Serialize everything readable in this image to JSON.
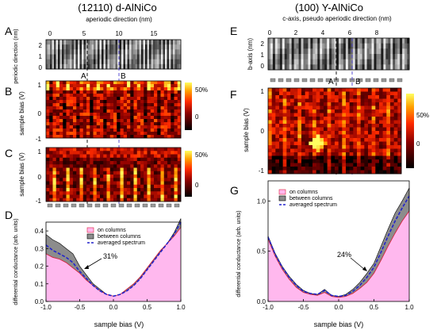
{
  "figure": {
    "left_title": "(12110) d-AlNiCo",
    "right_title": "(100) Y-AlNiCo"
  },
  "left": {
    "A": {
      "label": "A",
      "top_axis_label": "aperiodic direction (nm)",
      "top_ticks": [
        "0",
        "5",
        "10",
        "15"
      ],
      "y_label": "periodic direction (nm)",
      "y_ticks": [
        "2",
        "1",
        "0"
      ],
      "markers": [
        "A",
        "B"
      ]
    },
    "B": {
      "label": "B",
      "y_label": "sample bias (V)",
      "y_ticks": [
        "1",
        "0",
        "-1"
      ],
      "colorbar_ticks": [
        "50%",
        "0"
      ]
    },
    "C": {
      "label": "C",
      "y_label": "sample bias (V)",
      "y_ticks": [
        "1",
        "0",
        "-1"
      ],
      "colorbar_ticks": [
        "50%",
        "0"
      ]
    },
    "D": {
      "label": "D",
      "y_label": "differential conductance (arb. units)",
      "x_label": "sample bias (V)",
      "annotation": "31%"
    }
  },
  "right": {
    "E": {
      "label": "E",
      "top_axis_label": "c-axis, pseudo aperiodic direction (nm)",
      "top_ticks": [
        "0",
        "2",
        "4",
        "6",
        "8"
      ],
      "y_label": "b-axis (nm)",
      "y_ticks": [
        "2",
        "1",
        "0"
      ],
      "markers": [
        "A",
        "B"
      ]
    },
    "F": {
      "label": "F",
      "y_label": "sample bias (V)",
      "y_ticks": [
        "1",
        "0",
        "-1"
      ],
      "colorbar_ticks": [
        "50%",
        "0"
      ]
    },
    "G": {
      "label": "G",
      "y_label": "differential conductance (arb. units)",
      "x_label": "sample bias (V)",
      "annotation": "24%"
    }
  },
  "chart_data": [
    {
      "panel": "D",
      "type": "area",
      "xlabel": "sample bias (V)",
      "ylabel": "differential conductance (arb. units)",
      "xlim": [
        -1.0,
        1.0
      ],
      "ylim": [
        0,
        0.45
      ],
      "xticks": [
        "-1.0",
        "-0.5",
        "0.0",
        "0.5",
        "1.0"
      ],
      "yticks": [
        "0.0",
        "0.1",
        "0.2",
        "0.3",
        "0.4"
      ],
      "legend_position": "top-center",
      "x": [
        -1.0,
        -0.9,
        -0.8,
        -0.7,
        -0.6,
        -0.5,
        -0.4,
        -0.3,
        -0.2,
        -0.1,
        0.0,
        0.1,
        0.2,
        0.3,
        0.4,
        0.5,
        0.6,
        0.7,
        0.8,
        0.9,
        1.0
      ],
      "series": [
        {
          "name": "on columns",
          "color": "#ff6fc8",
          "values": [
            0.27,
            0.25,
            0.24,
            0.22,
            0.19,
            0.16,
            0.12,
            0.09,
            0.06,
            0.04,
            0.03,
            0.04,
            0.07,
            0.1,
            0.14,
            0.19,
            0.24,
            0.29,
            0.33,
            0.37,
            0.42
          ]
        },
        {
          "name": "between columns",
          "color": "#555555",
          "values": [
            0.38,
            0.35,
            0.33,
            0.3,
            0.27,
            0.2,
            0.15,
            0.1,
            0.07,
            0.04,
            0.03,
            0.04,
            0.06,
            0.09,
            0.13,
            0.18,
            0.23,
            0.28,
            0.33,
            0.39,
            0.47
          ]
        },
        {
          "name": "averaged spectrum",
          "color": "#2222cc",
          "values": [
            0.32,
            0.29,
            0.27,
            0.25,
            0.22,
            0.17,
            0.13,
            0.09,
            0.06,
            0.04,
            0.03,
            0.04,
            0.06,
            0.09,
            0.13,
            0.18,
            0.23,
            0.28,
            0.33,
            0.38,
            0.45
          ]
        }
      ]
    },
    {
      "panel": "G",
      "type": "area",
      "xlabel": "sample bias (V)",
      "ylabel": "differential conductance (arb. units)",
      "xlim": [
        -1.0,
        1.0
      ],
      "ylim": [
        0,
        1.2
      ],
      "xticks": [
        "-1.0",
        "-0.5",
        "0.0",
        "0.5",
        "1.0"
      ],
      "yticks": [
        "0.0",
        "0.5",
        "1.0"
      ],
      "legend_position": "top-left",
      "x": [
        -1.0,
        -0.9,
        -0.8,
        -0.7,
        -0.6,
        -0.5,
        -0.4,
        -0.3,
        -0.2,
        -0.1,
        0.0,
        0.1,
        0.2,
        0.3,
        0.4,
        0.5,
        0.6,
        0.7,
        0.8,
        0.9,
        1.0
      ],
      "series": [
        {
          "name": "on columns",
          "color": "#ff6fc8",
          "values": [
            0.62,
            0.45,
            0.32,
            0.22,
            0.14,
            0.09,
            0.07,
            0.06,
            0.09,
            0.05,
            0.04,
            0.05,
            0.08,
            0.13,
            0.19,
            0.28,
            0.41,
            0.55,
            0.68,
            0.8,
            0.9
          ]
        },
        {
          "name": "between columns",
          "color": "#555555",
          "values": [
            0.65,
            0.48,
            0.35,
            0.25,
            0.17,
            0.11,
            0.08,
            0.07,
            0.12,
            0.06,
            0.05,
            0.07,
            0.12,
            0.19,
            0.28,
            0.38,
            0.55,
            0.72,
            0.88,
            1.0,
            1.13
          ]
        },
        {
          "name": "averaged spectrum",
          "color": "#2222cc",
          "values": [
            0.64,
            0.47,
            0.34,
            0.24,
            0.16,
            0.1,
            0.08,
            0.07,
            0.11,
            0.06,
            0.05,
            0.06,
            0.1,
            0.16,
            0.24,
            0.34,
            0.49,
            0.65,
            0.8,
            0.93,
            1.05
          ]
        }
      ]
    }
  ]
}
